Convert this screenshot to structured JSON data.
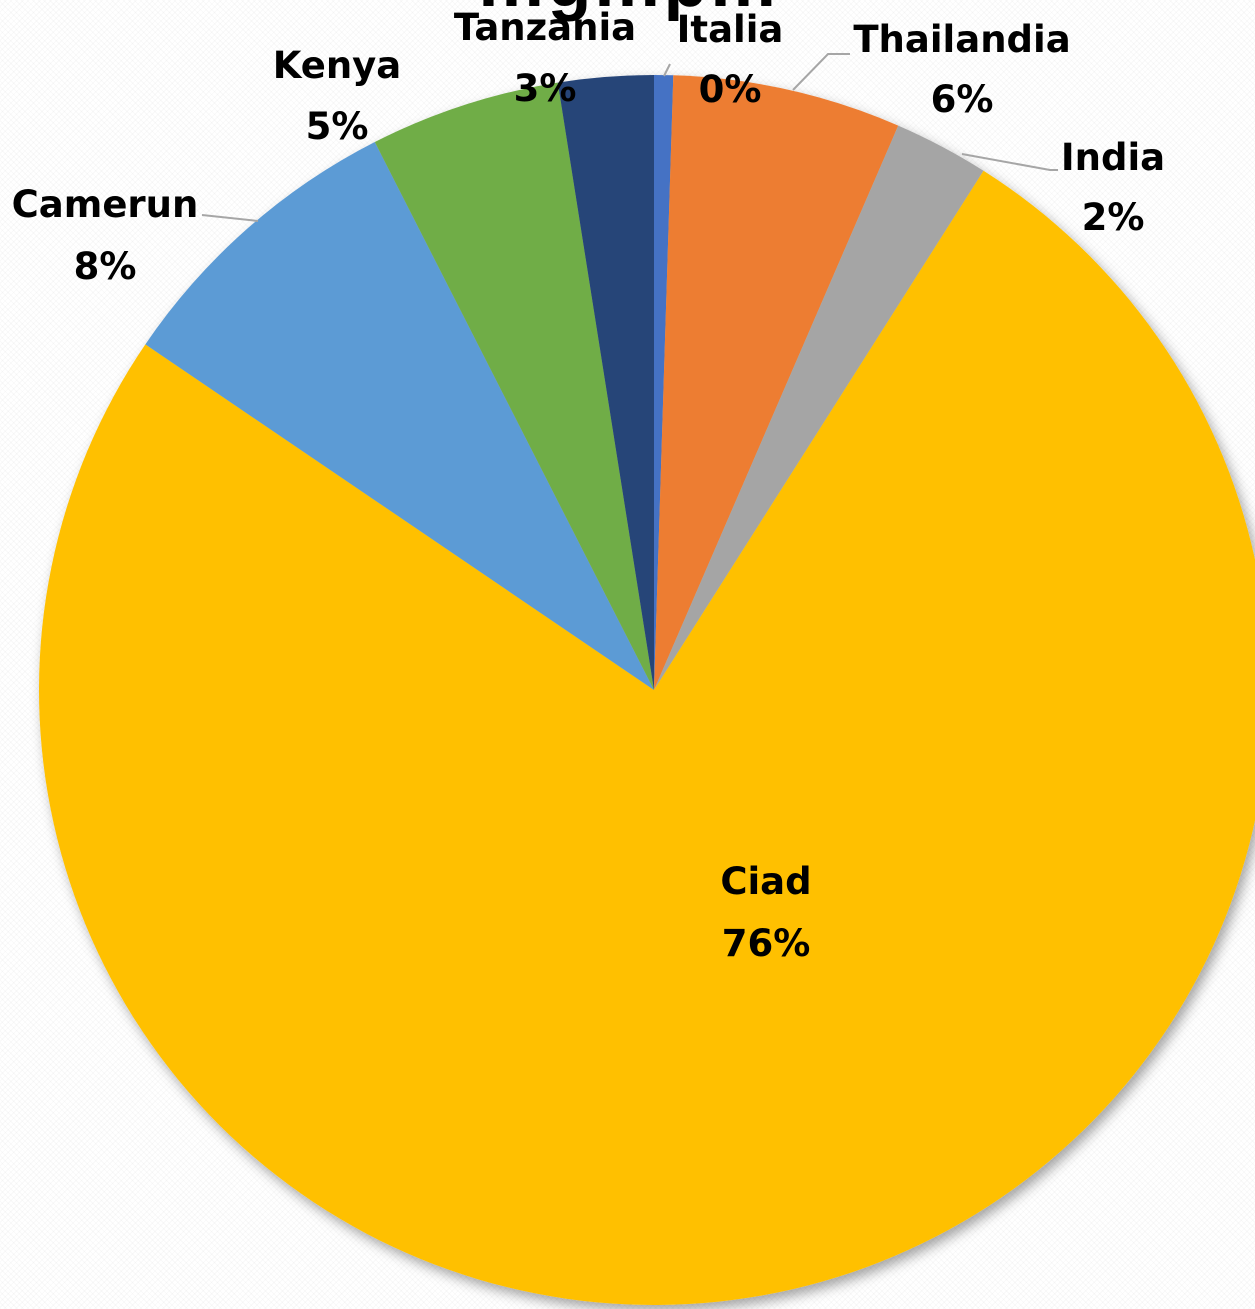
{
  "chart_data": {
    "type": "pie",
    "title": "…g…p…",
    "categories": [
      "Italia",
      "Thailandia",
      "India",
      "Ciad",
      "Camerun",
      "Kenya",
      "Tanzania"
    ],
    "values": [
      0.5,
      6,
      2.5,
      75.5,
      8,
      5,
      2.5
    ],
    "labels": [
      "0%",
      "6%",
      "2%",
      "76%",
      "8%",
      "5%",
      "3%"
    ],
    "colors": [
      "#4472C4",
      "#ED7D31",
      "#A5A5A5",
      "#FFC000",
      "#5B9BD5",
      "#70AD47",
      "#264478"
    ],
    "legend": "none",
    "data_labels": "category and percent"
  }
}
